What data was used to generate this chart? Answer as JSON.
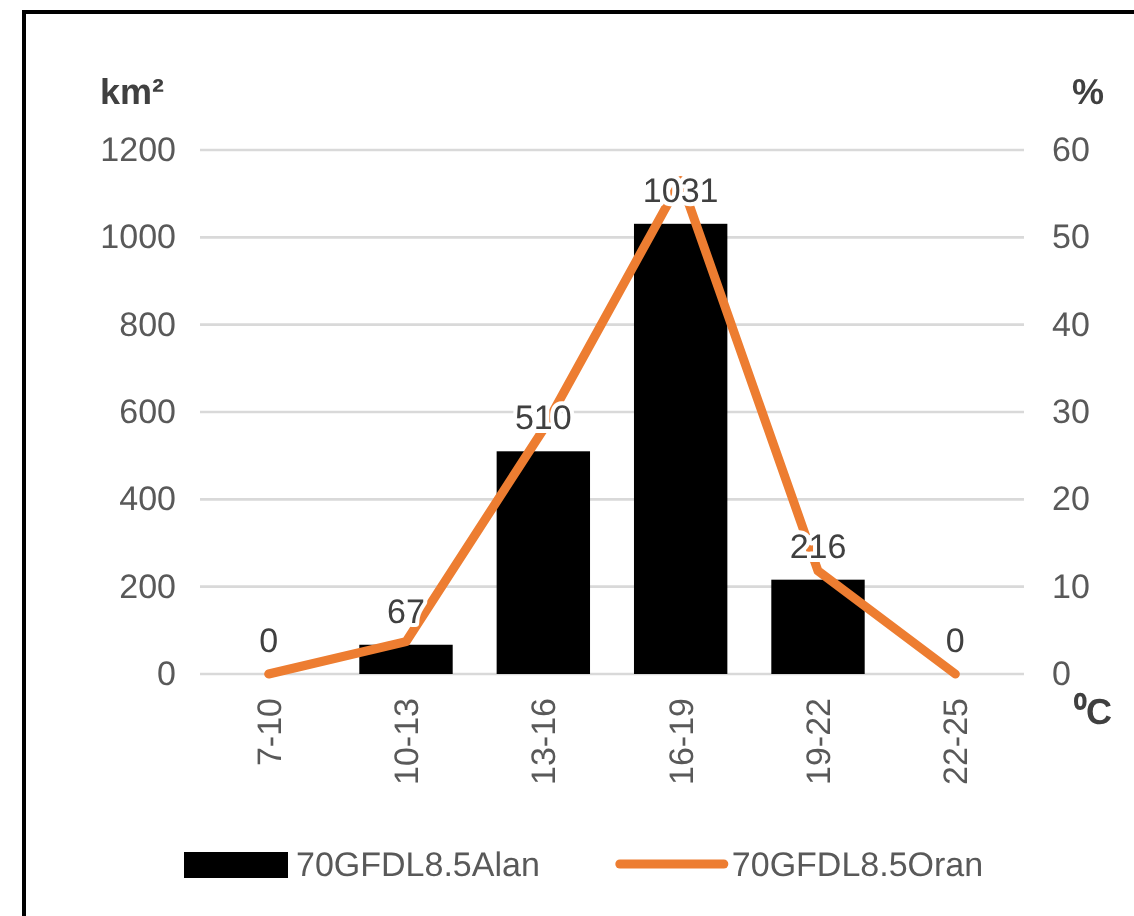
{
  "chart_data": {
    "type": "bar",
    "categories": [
      "7-10",
      "10-13",
      "13-16",
      "16-19",
      "19-22",
      "22-25"
    ],
    "series": [
      {
        "name": "70GFDL8.5Alan",
        "color": "#000000",
        "values": [
          0,
          67,
          510,
          1031,
          216,
          0
        ],
        "value_labels": [
          "0",
          "67",
          "510",
          "1031",
          "216",
          "0"
        ]
      },
      {
        "name": "70GFDL8.5Oran",
        "type": "line",
        "axis": "y2",
        "color": "#ed7d31",
        "values": [
          0,
          3.7,
          28,
          56.5,
          11.8,
          0
        ]
      }
    ],
    "xlabel": "⁰C",
    "ylabel": "km²",
    "y2label": "%",
    "ylim": [
      0,
      1200
    ],
    "yticks": [
      0,
      200,
      400,
      600,
      800,
      1000,
      1200
    ],
    "y2lim": [
      0,
      60
    ],
    "y2ticks": [
      0,
      10,
      20,
      30,
      40,
      50,
      60
    ],
    "grid": "y",
    "legend": "bottom",
    "line_style": "solid",
    "marker": "none"
  }
}
